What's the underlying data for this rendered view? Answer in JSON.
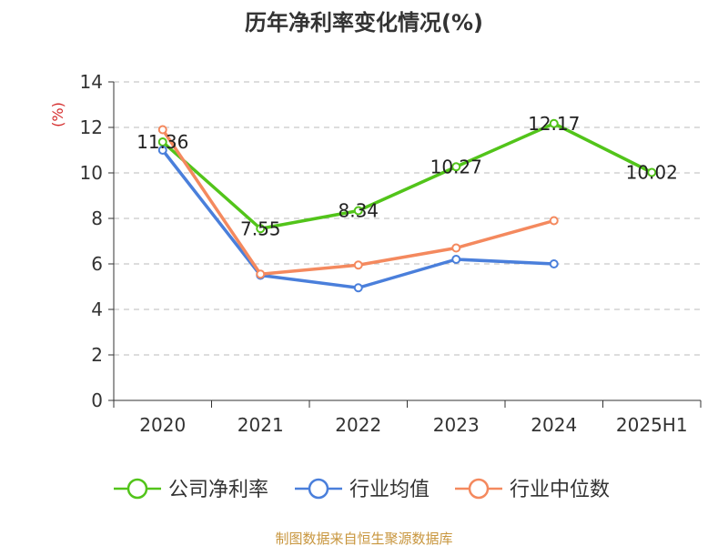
{
  "chart_data": {
    "type": "line",
    "title": "历年净利率变化情况(%)",
    "unit_label": "(%)",
    "categories": [
      "2020",
      "2021",
      "2022",
      "2023",
      "2024",
      "2025H1"
    ],
    "ylim": [
      0,
      14
    ],
    "yticks": [
      0,
      2,
      4,
      6,
      8,
      10,
      12,
      14
    ],
    "grid": true,
    "legend_position": "bottom",
    "series": [
      {
        "name": "公司净利率",
        "color": "#52c41a",
        "values": [
          11.36,
          7.55,
          8.34,
          10.27,
          12.17,
          10.02
        ],
        "labels": [
          "11.36",
          "7.55",
          "8.34",
          "10.27",
          "12.17",
          "10.02"
        ]
      },
      {
        "name": "行业均值",
        "color": "#4a7fdb",
        "values": [
          11.0,
          5.5,
          4.95,
          6.2,
          6.0,
          null
        ],
        "labels": null
      },
      {
        "name": "行业中位数",
        "color": "#f4895e",
        "values": [
          11.9,
          5.55,
          5.95,
          6.7,
          7.9,
          null
        ],
        "labels": null
      }
    ],
    "source": "制图数据来自恒生聚源数据库"
  }
}
